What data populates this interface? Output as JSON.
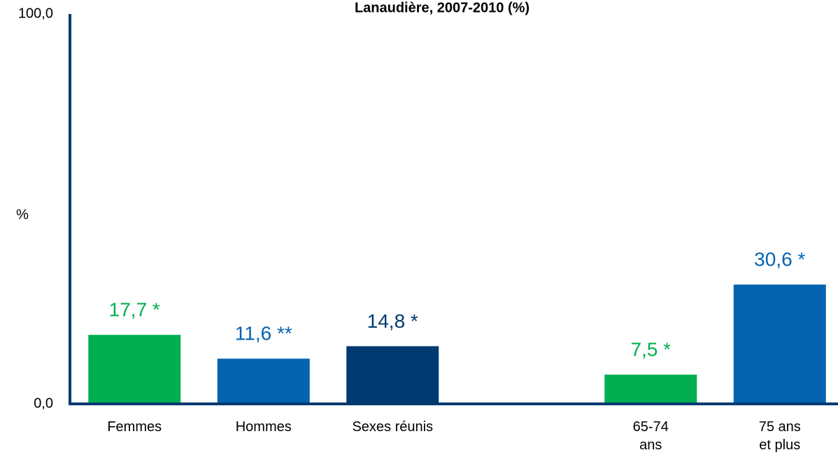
{
  "chart_data": {
    "type": "bar",
    "title": "Lanaudière, 2007-2010 (%)",
    "y_label": "%",
    "categories": [
      "Femmes",
      "Hommes",
      "Sexes réunis",
      null,
      "65-74 ans",
      "75 ans et plus"
    ],
    "values": [
      17.7,
      11.6,
      14.8,
      null,
      7.5,
      30.6
    ],
    "value_labels": [
      "17,7 *",
      "11,6 **",
      "14,8 *",
      null,
      "7,5 *",
      "30,6 *"
    ],
    "colors": [
      "#00b050",
      "#0563b0",
      "#003a70",
      null,
      "#00b050",
      "#0563b0"
    ],
    "ylim": [
      0,
      100
    ],
    "yticks": [
      {
        "value": 0,
        "label": "0,0"
      },
      {
        "value": 100,
        "label": "100,0"
      }
    ],
    "axis_color": "#003a70",
    "grid": false
  }
}
